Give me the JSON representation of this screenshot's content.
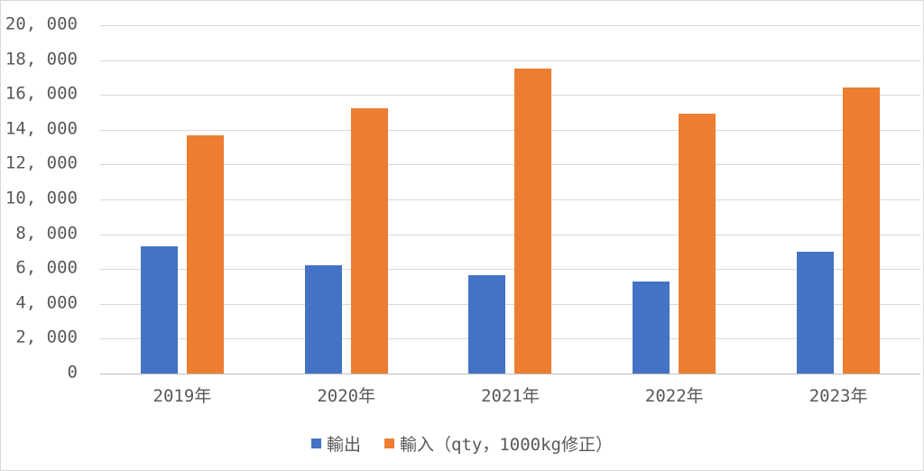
{
  "chart": {
    "background_color": "#FFFFFF",
    "border_color": "#D9D9D9",
    "grid_color": "#D9D9D9",
    "axis_color": "#BFBFBF",
    "text_color": "#595959"
  },
  "chart_data": {
    "type": "bar",
    "title": "",
    "categories": [
      "2019年",
      "2020年",
      "2021年",
      "2022年",
      "2023年"
    ],
    "series": [
      {
        "name": "輸出",
        "color": "#4472C4",
        "values": [
          7300,
          6200,
          5650,
          5300,
          7000
        ]
      },
      {
        "name": "輸入（qty，1000kg修正）",
        "color": "#ED7D31",
        "values": [
          13700,
          15250,
          17500,
          14900,
          16450
        ]
      }
    ],
    "ylim": [
      0,
      20000
    ],
    "ytick_step": 2000,
    "ytick_labels": [
      "0",
      "2, 000",
      "4, 000",
      "6, 000",
      "8, 000",
      "10, 000",
      "12, 000",
      "14, 000",
      "16, 000",
      "18, 000",
      "20, 000"
    ],
    "xlabel": "",
    "ylabel": "",
    "grid": true,
    "legend_position": "bottom"
  }
}
